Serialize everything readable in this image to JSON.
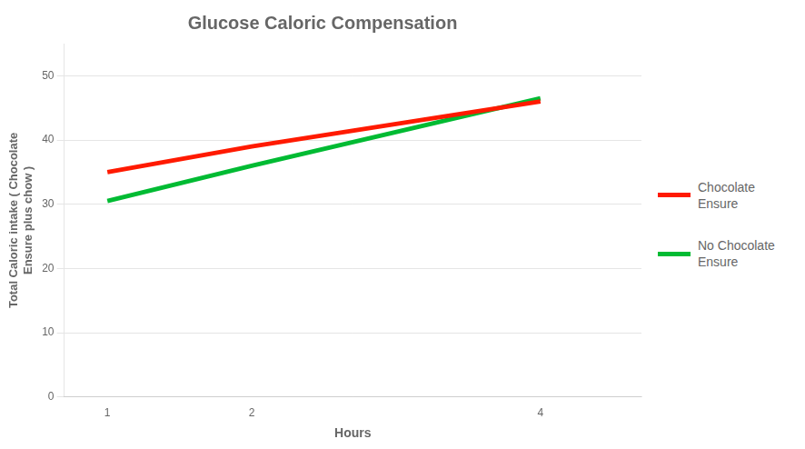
{
  "chart_data": {
    "type": "line",
    "title": "Glucose Caloric Compensation",
    "xlabel": "Hours",
    "ylabel": "Total Caloric intake ( Chocolate\nEnsure plus chow )",
    "x": [
      1,
      2,
      4
    ],
    "series": [
      {
        "name": "Chocolate\nEnsure",
        "color": "#ff1a00",
        "values": [
          35,
          39,
          46
        ]
      },
      {
        "name": "No Chocolate\nEnsure",
        "color": "#00bb33",
        "values": [
          30.5,
          36,
          46.5
        ]
      }
    ],
    "xlim": [
      0.7,
      4.7
    ],
    "xticks": [
      1,
      2,
      4
    ],
    "ylim": [
      0,
      55
    ],
    "yticks": [
      0,
      10,
      20,
      30,
      40,
      50
    ],
    "grid": "y",
    "legend": "right"
  }
}
